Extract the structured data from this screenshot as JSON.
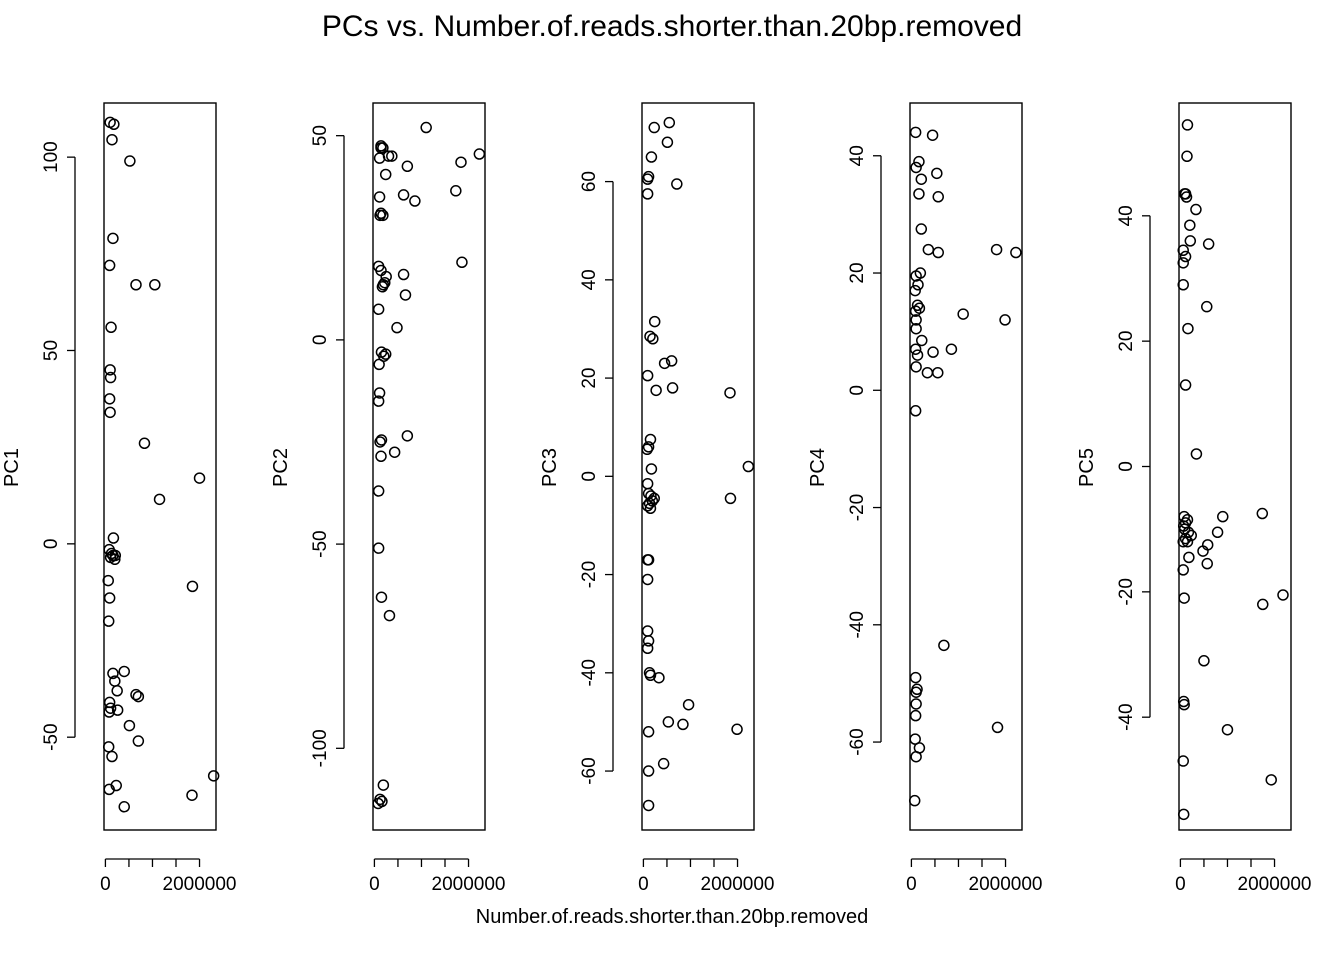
{
  "title": "PCs vs. Number.of.reads.shorter.than.20bp.removed",
  "xlabel": "Number.of.reads.shorter.than.20bp.removed",
  "chart_data": [
    {
      "type": "scatter",
      "ylabel": "PC1",
      "xlim": [
        -30000,
        2350000
      ],
      "ylim": [
        -74,
        114
      ],
      "xticks": [
        0,
        500000,
        1000000,
        1500000,
        2000000
      ],
      "xticklabels": [
        "0",
        "",
        "",
        "",
        "2000000"
      ],
      "yticks": [
        -50,
        0,
        50,
        100
      ],
      "yticklabels": [
        "-50",
        "0",
        "50",
        "100"
      ],
      "points": [
        [
          100000,
          109
        ],
        [
          180000,
          108.5
        ],
        [
          140000,
          104.5
        ],
        [
          520000,
          99
        ],
        [
          160000,
          79
        ],
        [
          90000,
          72
        ],
        [
          650000,
          67
        ],
        [
          1050000,
          67
        ],
        [
          120000,
          56
        ],
        [
          100000,
          45
        ],
        [
          110000,
          43
        ],
        [
          90000,
          37.5
        ],
        [
          100000,
          34
        ],
        [
          830000,
          26
        ],
        [
          1150000,
          11.5
        ],
        [
          2000000,
          17
        ],
        [
          170000,
          1.5
        ],
        [
          80000,
          -1.5
        ],
        [
          130000,
          -2.5
        ],
        [
          160000,
          -3
        ],
        [
          210000,
          -3
        ],
        [
          110000,
          -3.5
        ],
        [
          200000,
          -4
        ],
        [
          60000,
          -9.5
        ],
        [
          90000,
          -14
        ],
        [
          70000,
          -20
        ],
        [
          1850000,
          -11
        ],
        [
          400000,
          -33
        ],
        [
          160000,
          -33.5
        ],
        [
          200000,
          -35.5
        ],
        [
          250000,
          -38
        ],
        [
          650000,
          -39
        ],
        [
          700000,
          -39.5
        ],
        [
          90000,
          -41
        ],
        [
          110000,
          -42.5
        ],
        [
          260000,
          -43
        ],
        [
          80000,
          -43.5
        ],
        [
          510000,
          -47
        ],
        [
          700000,
          -51
        ],
        [
          70000,
          -52.5
        ],
        [
          140000,
          -55
        ],
        [
          230000,
          -62.5
        ],
        [
          80000,
          -63.5
        ],
        [
          2300000,
          -60
        ],
        [
          1840000,
          -65
        ],
        [
          400000,
          -68
        ]
      ]
    },
    {
      "type": "scatter",
      "ylabel": "PC2",
      "xlim": [
        -30000,
        2350000
      ],
      "ylim": [
        -120,
        58
      ],
      "xticks": [
        0,
        500000,
        1000000,
        1500000,
        2000000
      ],
      "xticklabels": [
        "0",
        "",
        "",
        "",
        "2000000"
      ],
      "yticks": [
        -100,
        -50,
        0,
        50
      ],
      "yticklabels": [
        "-100",
        "-50",
        "0",
        "50"
      ],
      "points": [
        [
          1100000,
          52
        ],
        [
          140000,
          47.5
        ],
        [
          140000,
          47
        ],
        [
          180000,
          47
        ],
        [
          300000,
          45
        ],
        [
          370000,
          45
        ],
        [
          110000,
          44.5
        ],
        [
          2230000,
          45.5
        ],
        [
          1840000,
          43.5
        ],
        [
          700000,
          42.5
        ],
        [
          240000,
          40.5
        ],
        [
          1730000,
          36.5
        ],
        [
          620000,
          35.5
        ],
        [
          860000,
          34
        ],
        [
          110000,
          35
        ],
        [
          140000,
          31
        ],
        [
          120000,
          30.5
        ],
        [
          180000,
          30.5
        ],
        [
          90000,
          18
        ],
        [
          1860000,
          19
        ],
        [
          140000,
          17
        ],
        [
          620000,
          16
        ],
        [
          250000,
          15.5
        ],
        [
          220000,
          14
        ],
        [
          170000,
          13
        ],
        [
          190000,
          13.5
        ],
        [
          660000,
          11
        ],
        [
          90000,
          7.5
        ],
        [
          480000,
          3
        ],
        [
          150000,
          -3
        ],
        [
          240000,
          -3.5
        ],
        [
          200000,
          -4
        ],
        [
          100000,
          -6
        ],
        [
          110000,
          -13
        ],
        [
          90000,
          -15
        ],
        [
          700000,
          -23.5
        ],
        [
          150000,
          -24.5
        ],
        [
          120000,
          -25
        ],
        [
          430000,
          -27.5
        ],
        [
          140000,
          -28.5
        ],
        [
          90000,
          -37
        ],
        [
          90000,
          -51
        ],
        [
          150000,
          -63
        ],
        [
          320000,
          -67.5
        ],
        [
          190000,
          -109
        ],
        [
          120000,
          -112.5
        ],
        [
          160000,
          -113
        ],
        [
          80000,
          -113.5
        ]
      ]
    },
    {
      "type": "scatter",
      "ylabel": "PC3",
      "xlim": [
        -30000,
        2350000
      ],
      "ylim": [
        -72,
        76
      ],
      "xticks": [
        0,
        500000,
        1000000,
        1500000,
        2000000
      ],
      "xticklabels": [
        "0",
        "",
        "",
        "",
        "2000000"
      ],
      "yticks": [
        -60,
        -40,
        -20,
        0,
        20,
        40,
        60
      ],
      "yticklabels": [
        "-60",
        "-40",
        "-20",
        "0",
        "20",
        "40",
        "60"
      ],
      "points": [
        [
          550000,
          72
        ],
        [
          230000,
          71
        ],
        [
          510000,
          68
        ],
        [
          170000,
          65
        ],
        [
          110000,
          61
        ],
        [
          90000,
          60.5
        ],
        [
          710000,
          59.5
        ],
        [
          90000,
          57.5
        ],
        [
          240000,
          31.5
        ],
        [
          140000,
          28.5
        ],
        [
          200000,
          28
        ],
        [
          600000,
          23.5
        ],
        [
          450000,
          23
        ],
        [
          90000,
          20.5
        ],
        [
          270000,
          17.5
        ],
        [
          620000,
          18
        ],
        [
          1840000,
          17
        ],
        [
          2230000,
          2
        ],
        [
          150000,
          7.5
        ],
        [
          110000,
          6
        ],
        [
          80000,
          5.5
        ],
        [
          170000,
          1.5
        ],
        [
          90000,
          -1.5
        ],
        [
          110000,
          -3.5
        ],
        [
          160000,
          -4
        ],
        [
          230000,
          -4.5
        ],
        [
          190000,
          -5
        ],
        [
          130000,
          -5.5
        ],
        [
          90000,
          -6
        ],
        [
          150000,
          -6.5
        ],
        [
          1850000,
          -4.5
        ],
        [
          90000,
          -17
        ],
        [
          110000,
          -17
        ],
        [
          90000,
          -21
        ],
        [
          90000,
          -31.5
        ],
        [
          110000,
          -33.5
        ],
        [
          90000,
          -35
        ],
        [
          130000,
          -40
        ],
        [
          150000,
          -40.5
        ],
        [
          330000,
          -41
        ],
        [
          960000,
          -46.5
        ],
        [
          840000,
          -50.5
        ],
        [
          530000,
          -50
        ],
        [
          1990000,
          -51.5
        ],
        [
          110000,
          -52
        ],
        [
          430000,
          -58.5
        ],
        [
          110000,
          -60
        ],
        [
          110000,
          -67
        ]
      ]
    },
    {
      "type": "scatter",
      "ylabel": "PC4",
      "xlim": [
        -30000,
        2350000
      ],
      "ylim": [
        -75,
        49
      ],
      "xticks": [
        0,
        500000,
        1000000,
        1500000,
        2000000
      ],
      "xticklabels": [
        "0",
        "",
        "",
        "",
        "2000000"
      ],
      "yticks": [
        -60,
        -40,
        -20,
        0,
        20,
        40
      ],
      "yticklabels": [
        "-60",
        "-40",
        "-20",
        "0",
        "20",
        "40"
      ],
      "points": [
        [
          90000,
          44
        ],
        [
          450000,
          43.5
        ],
        [
          160000,
          39
        ],
        [
          100000,
          38
        ],
        [
          540000,
          37
        ],
        [
          210000,
          36
        ],
        [
          570000,
          33
        ],
        [
          160000,
          33.5
        ],
        [
          210000,
          27.5
        ],
        [
          360000,
          24
        ],
        [
          570000,
          23.5
        ],
        [
          1810000,
          24
        ],
        [
          2220000,
          23.5
        ],
        [
          190000,
          20
        ],
        [
          100000,
          19.5
        ],
        [
          140000,
          18
        ],
        [
          80000,
          17
        ],
        [
          130000,
          14.5
        ],
        [
          170000,
          14
        ],
        [
          90000,
          13.5
        ],
        [
          100000,
          12
        ],
        [
          1100000,
          13
        ],
        [
          1990000,
          12
        ],
        [
          100000,
          10.5
        ],
        [
          220000,
          8.5
        ],
        [
          90000,
          7
        ],
        [
          130000,
          6
        ],
        [
          460000,
          6.5
        ],
        [
          850000,
          7
        ],
        [
          100000,
          4
        ],
        [
          340000,
          3
        ],
        [
          560000,
          3
        ],
        [
          90000,
          -3.5
        ],
        [
          690000,
          -43.5
        ],
        [
          1830000,
          -57.5
        ],
        [
          90000,
          -49
        ],
        [
          120000,
          -51
        ],
        [
          100000,
          -51.5
        ],
        [
          100000,
          -53.5
        ],
        [
          90000,
          -55.5
        ],
        [
          80000,
          -59.5
        ],
        [
          170000,
          -61
        ],
        [
          100000,
          -62.5
        ],
        [
          70000,
          -70
        ]
      ]
    },
    {
      "type": "scatter",
      "ylabel": "PC5",
      "xlim": [
        -30000,
        2350000
      ],
      "ylim": [
        -58,
        58
      ],
      "xticks": [
        0,
        500000,
        1000000,
        1500000,
        2000000
      ],
      "xticklabels": [
        "0",
        "",
        "",
        "",
        "2000000"
      ],
      "yticks": [
        -40,
        -20,
        0,
        20,
        40
      ],
      "yticklabels": [
        "-40",
        "-20",
        "0",
        "20",
        "40"
      ],
      "points": [
        [
          150000,
          54.5
        ],
        [
          140000,
          49.5
        ],
        [
          110000,
          43.5
        ],
        [
          130000,
          43
        ],
        [
          90000,
          43.5
        ],
        [
          330000,
          41
        ],
        [
          200000,
          38.5
        ],
        [
          210000,
          36
        ],
        [
          600000,
          35.5
        ],
        [
          60000,
          34.5
        ],
        [
          110000,
          33.5
        ],
        [
          60000,
          32.5
        ],
        [
          60000,
          29
        ],
        [
          560000,
          25.5
        ],
        [
          160000,
          22
        ],
        [
          110000,
          13
        ],
        [
          340000,
          2
        ],
        [
          80000,
          -8
        ],
        [
          150000,
          -8.5
        ],
        [
          110000,
          -9
        ],
        [
          70000,
          -9.5
        ],
        [
          90000,
          -10
        ],
        [
          170000,
          -10.5
        ],
        [
          230000,
          -11
        ],
        [
          110000,
          -11.5
        ],
        [
          60000,
          -12
        ],
        [
          150000,
          -12
        ],
        [
          790000,
          -10.5
        ],
        [
          900000,
          -8
        ],
        [
          1740000,
          -7.5
        ],
        [
          480000,
          -13.5
        ],
        [
          580000,
          -12.5
        ],
        [
          180000,
          -14.5
        ],
        [
          570000,
          -15.5
        ],
        [
          60000,
          -16.5
        ],
        [
          80000,
          -21
        ],
        [
          1750000,
          -22
        ],
        [
          2180000,
          -20.5
        ],
        [
          500000,
          -31
        ],
        [
          1000000,
          -42
        ],
        [
          70000,
          -37.5
        ],
        [
          80000,
          -38
        ],
        [
          60000,
          -47
        ],
        [
          1930000,
          -50
        ],
        [
          70000,
          -55.5
        ]
      ]
    }
  ]
}
